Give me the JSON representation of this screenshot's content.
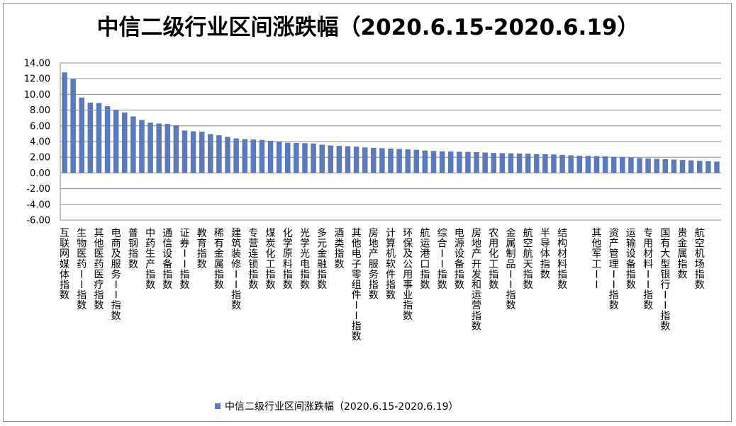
{
  "chart_data": {
    "type": "bar",
    "title": "中信二级行业区间涨跌幅（2020.6.15-2020.6.19）",
    "xlabel": "",
    "ylabel": "",
    "ylim": [
      -6,
      14
    ],
    "yticks": [
      14,
      12,
      10,
      8,
      6,
      4,
      2,
      0,
      -2,
      -4,
      -6
    ],
    "ytick_format": "0.00",
    "grid": true,
    "legend": {
      "position": "bottom",
      "entries": [
        "中信二级行业区间涨跌幅（2020.6.15-2020.6.19）"
      ]
    },
    "categories": [
      "互联网媒体指数",
      "生物医药II指数",
      "其他医药医疗指数",
      "电商及服务II指数",
      "普钢指数",
      "中药生产指数",
      "通信设备指数",
      "证券II指数",
      "教育指数",
      "稀有金属指数",
      "建筑装修II指数",
      "专营连锁指数",
      "煤炭化工指数",
      "化学原料指数",
      "光学光电指数",
      "多元金融指数",
      "酒类指数",
      "其他电子零组件II指数",
      "房地产服务指数",
      "计算机软件指数",
      "环保及公用事业指数",
      "航运港口指数",
      "综合II指数",
      "电源设备指数",
      "房地产开发和运营指数",
      "农用化工指数",
      "金属制品II指数",
      "航空航天指数",
      "半导体指数",
      "结构材料指数",
      "其他军工II",
      "资产管理II指数",
      "运输设备指数",
      "专用材料II指数",
      "国有大型银行II指数",
      "贵金属指数",
      "航空机场指数"
    ],
    "series": [
      {
        "name": "中信二级行业区间涨跌幅（2020.6.15-2020.6.19）",
        "color": "#5b79bb",
        "positions": [
          0,
          2,
          4,
          6,
          8,
          10,
          12,
          14,
          16,
          18,
          20,
          22,
          24,
          26,
          28,
          30,
          32,
          34,
          36,
          38,
          40,
          42,
          44,
          46,
          48,
          50,
          52,
          54,
          56,
          58,
          62,
          64,
          66,
          68,
          70,
          72,
          74
        ],
        "values": [
          12.8,
          11.95,
          9.6,
          8.95,
          8.9,
          8.5,
          8.05,
          7.7,
          7.2,
          6.75,
          6.4,
          6.3,
          6.25,
          6.05,
          5.4,
          5.3,
          5.25,
          4.95,
          4.8,
          4.6,
          4.4,
          4.3,
          4.25,
          4.2,
          4.1,
          3.95,
          3.85,
          3.82,
          3.8,
          3.75,
          3.6,
          3.5,
          3.45,
          3.4,
          3.35,
          3.25,
          3.2,
          3.15,
          3.1,
          3.05,
          3.0,
          2.95,
          2.85,
          2.8,
          2.75,
          2.72,
          2.7,
          2.68,
          2.65,
          2.6,
          2.55,
          2.52,
          2.5,
          2.48,
          2.45,
          2.4,
          2.38,
          2.35,
          2.3,
          2.25,
          2.2,
          2.18,
          2.15,
          2.1,
          2.05,
          2.0,
          1.95,
          1.9,
          1.85,
          1.8,
          1.75,
          1.7,
          1.65,
          1.6,
          1.55,
          1.5,
          1.45
        ]
      }
    ]
  }
}
